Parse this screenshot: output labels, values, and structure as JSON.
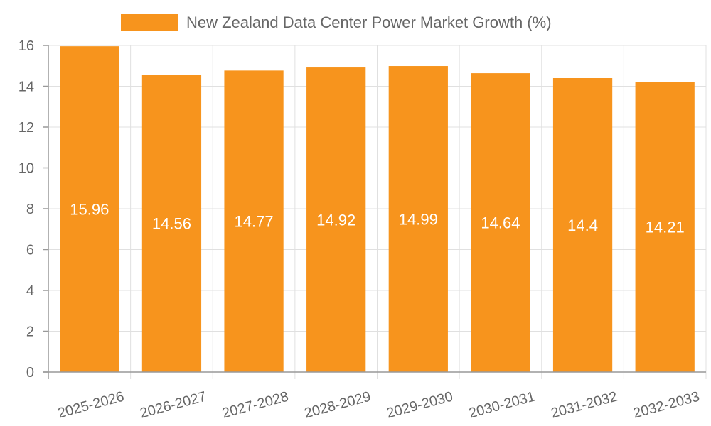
{
  "chart_data": {
    "type": "bar",
    "title": "",
    "xlabel": "",
    "ylabel": "",
    "categories": [
      "2025-2026",
      "2026-2027",
      "2027-2028",
      "2028-2029",
      "2029-2030",
      "2030-2031",
      "2031-2032",
      "2032-2033"
    ],
    "series": [
      {
        "name": "New Zealand Data Center Power Market Growth (%)",
        "values": [
          15.96,
          14.56,
          14.77,
          14.92,
          14.99,
          14.64,
          14.4,
          14.21
        ],
        "color": "#f7941d"
      }
    ],
    "ylim": [
      0,
      16
    ],
    "yticks": [
      0,
      2,
      4,
      6,
      8,
      10,
      12,
      14,
      16
    ],
    "legend_position": "top-center",
    "grid": true
  }
}
